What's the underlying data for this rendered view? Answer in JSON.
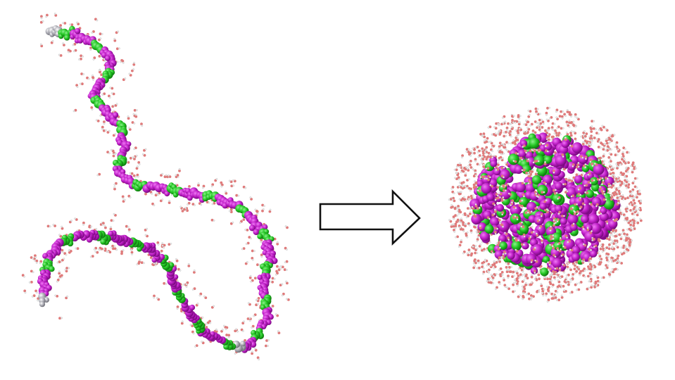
{
  "figure": {
    "left_panel": {
      "state": "extended",
      "bead_colors": [
        "#c020c8",
        "#25c825",
        "#b0b0b8"
      ]
    },
    "arrow": {
      "direction": "right",
      "style": "outlined"
    },
    "right_panel": {
      "state": "collapsed",
      "bead_colors": [
        "#c020c8",
        "#25c825"
      ]
    },
    "solvent": {
      "oxygen_color": "#e07a7a",
      "hydrogen_color": "#eeeeee"
    }
  }
}
